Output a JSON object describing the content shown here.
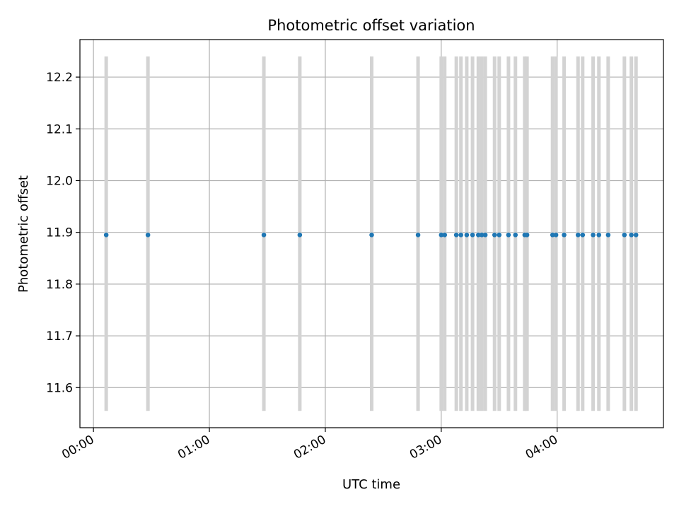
{
  "chart_data": {
    "type": "scatter",
    "title": "Photometric offset variation",
    "xlabel": "UTC time",
    "ylabel": "Photometric offset",
    "x_unit": "hours",
    "xlim": [
      -0.1167,
      4.9167
    ],
    "ylim": [
      11.5225,
      12.2725
    ],
    "x_ticks": [
      {
        "value": 0,
        "label": "00:00"
      },
      {
        "value": 1,
        "label": "01:00"
      },
      {
        "value": 2,
        "label": "02:00"
      },
      {
        "value": 3,
        "label": "03:00"
      },
      {
        "value": 4,
        "label": "04:00"
      }
    ],
    "y_ticks": [
      {
        "value": 11.6,
        "label": "11.6"
      },
      {
        "value": 11.7,
        "label": "11.7"
      },
      {
        "value": 11.8,
        "label": "11.8"
      },
      {
        "value": 11.9,
        "label": "11.9"
      },
      {
        "value": 12.0,
        "label": "12.0"
      },
      {
        "value": 12.1,
        "label": "12.1"
      },
      {
        "value": 12.2,
        "label": "12.2"
      }
    ],
    "grid": true,
    "band_range": [
      11.555,
      12.24
    ],
    "x": [
      0.11,
      0.47,
      1.47,
      1.78,
      2.4,
      2.8,
      3.0,
      3.03,
      3.13,
      3.17,
      3.22,
      3.27,
      3.32,
      3.35,
      3.38,
      3.46,
      3.5,
      3.58,
      3.64,
      3.72,
      3.74,
      3.96,
      3.99,
      4.06,
      4.18,
      4.22,
      4.31,
      4.36,
      4.44,
      4.58,
      4.64,
      4.68
    ],
    "y": [
      11.895,
      11.895,
      11.895,
      11.895,
      11.895,
      11.895,
      11.895,
      11.895,
      11.895,
      11.895,
      11.895,
      11.895,
      11.895,
      11.895,
      11.895,
      11.895,
      11.895,
      11.895,
      11.895,
      11.895,
      11.895,
      11.895,
      11.895,
      11.895,
      11.895,
      11.895,
      11.895,
      11.895,
      11.895,
      11.895,
      11.895,
      11.895
    ],
    "colors": {
      "point": "#1f77b4",
      "band": "#d3d3d3",
      "grid": "#b0b0b0",
      "axis": "#000000"
    }
  }
}
